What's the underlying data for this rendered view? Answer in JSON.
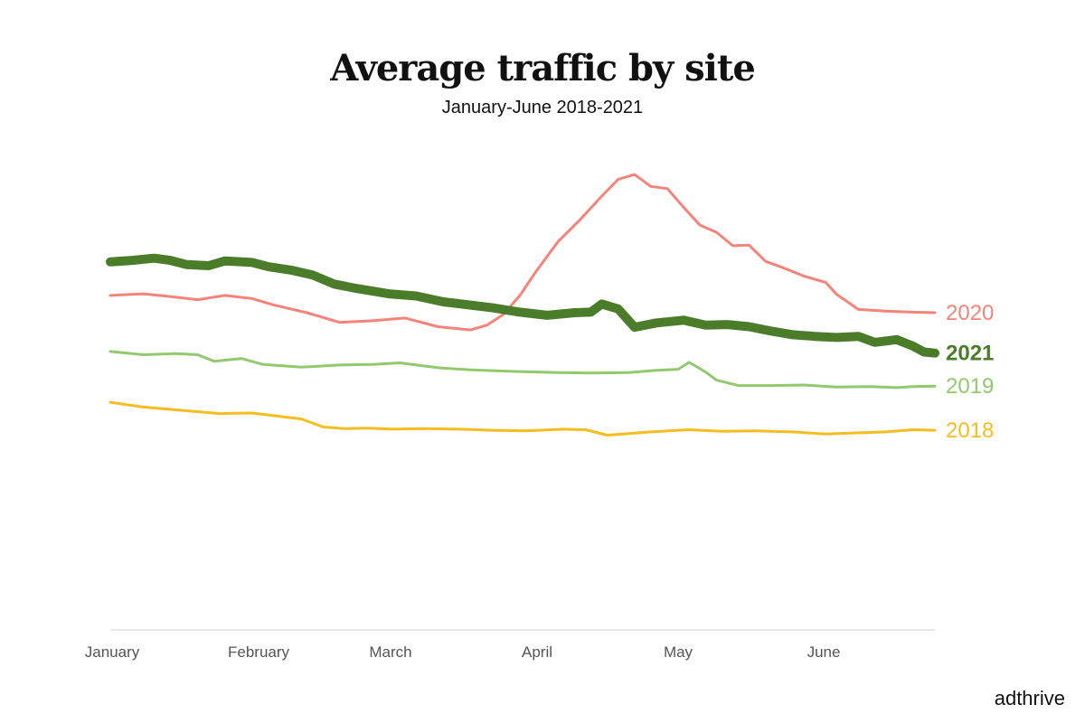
{
  "chart_data": {
    "type": "line",
    "title": "Average traffic by site",
    "subtitle": "January-June 2018-2021",
    "xlabel": "",
    "ylabel": "",
    "x_ticks": [
      "January",
      "February",
      "March",
      "April",
      "May",
      "June"
    ],
    "ylim": [
      0,
      100
    ],
    "grid": false,
    "legend": "end-of-line labels",
    "series": [
      {
        "name": "2020",
        "color": "#f4847a",
        "weight": "normal",
        "values": [
          [
            0,
            62
          ],
          [
            6,
            62.3
          ],
          [
            11,
            61.8
          ],
          [
            16,
            61.2
          ],
          [
            21,
            62
          ],
          [
            26,
            61.4
          ],
          [
            30,
            60.2
          ],
          [
            36,
            58.8
          ],
          [
            42,
            57
          ],
          [
            48,
            57.3
          ],
          [
            54,
            57.8
          ],
          [
            60,
            56.2
          ],
          [
            66,
            55.6
          ],
          [
            69,
            56.5
          ],
          [
            72,
            58.5
          ],
          [
            75,
            62
          ],
          [
            78,
            66.5
          ],
          [
            82,
            72
          ],
          [
            86,
            76
          ],
          [
            90,
            80.4
          ],
          [
            93,
            83.5
          ],
          [
            96,
            84.4
          ],
          [
            99,
            82.2
          ],
          [
            102,
            81.8
          ],
          [
            105,
            78.3
          ],
          [
            108,
            75
          ],
          [
            111,
            73.7
          ],
          [
            114,
            71.2
          ],
          [
            117,
            71.3
          ],
          [
            120,
            68.3
          ],
          [
            123,
            67.2
          ],
          [
            127,
            65.6
          ],
          [
            131,
            64.4
          ],
          [
            133,
            62.2
          ],
          [
            137,
            59.4
          ],
          [
            142,
            59.1
          ],
          [
            147,
            58.9
          ],
          [
            151,
            58.8
          ]
        ]
      },
      {
        "name": "2021",
        "color": "#4a7c2a",
        "weight": "bold",
        "values": [
          [
            0,
            68.2
          ],
          [
            4,
            68.5
          ],
          [
            8,
            68.9
          ],
          [
            11,
            68.5
          ],
          [
            14,
            67.7
          ],
          [
            18,
            67.5
          ],
          [
            21,
            68.4
          ],
          [
            26,
            68.1
          ],
          [
            29,
            67.3
          ],
          [
            33,
            66.7
          ],
          [
            37,
            65.8
          ],
          [
            41,
            64.1
          ],
          [
            45,
            63.3
          ],
          [
            51,
            62.3
          ],
          [
            56,
            61.9
          ],
          [
            61,
            60.8
          ],
          [
            66,
            60.2
          ],
          [
            70,
            59.7
          ],
          [
            75,
            58.9
          ],
          [
            80,
            58.3
          ],
          [
            85,
            58.8
          ],
          [
            88,
            58.9
          ],
          [
            90,
            60.4
          ],
          [
            93,
            59.5
          ],
          [
            96,
            56.1
          ],
          [
            100,
            56.9
          ],
          [
            105,
            57.4
          ],
          [
            109,
            56.5
          ],
          [
            113,
            56.6
          ],
          [
            117,
            56.2
          ],
          [
            121,
            55.4
          ],
          [
            125,
            54.7
          ],
          [
            129,
            54.4
          ],
          [
            133,
            54.2
          ],
          [
            137,
            54.4
          ],
          [
            140,
            53.3
          ],
          [
            144,
            53.8
          ],
          [
            147,
            52.6
          ],
          [
            149,
            51.5
          ],
          [
            151,
            51.3
          ]
        ]
      },
      {
        "name": "2019",
        "color": "#93c96e",
        "weight": "normal",
        "values": [
          [
            0,
            51.6
          ],
          [
            6,
            51
          ],
          [
            12,
            51.2
          ],
          [
            16,
            51
          ],
          [
            19,
            49.8
          ],
          [
            24,
            50.3
          ],
          [
            28,
            49.2
          ],
          [
            35,
            48.7
          ],
          [
            42,
            49.1
          ],
          [
            48,
            49.2
          ],
          [
            53,
            49.5
          ],
          [
            60,
            48.6
          ],
          [
            66,
            48.2
          ],
          [
            74,
            47.9
          ],
          [
            82,
            47.7
          ],
          [
            88,
            47.6
          ],
          [
            95,
            47.7
          ],
          [
            100,
            48.1
          ],
          [
            104,
            48.3
          ],
          [
            106,
            49.6
          ],
          [
            109,
            47.8
          ],
          [
            111,
            46.3
          ],
          [
            115,
            45.3
          ],
          [
            121,
            45.3
          ],
          [
            127,
            45.4
          ],
          [
            133,
            45
          ],
          [
            139,
            45.1
          ],
          [
            144,
            44.9
          ],
          [
            147,
            45.1
          ],
          [
            151,
            45.2
          ]
        ]
      },
      {
        "name": "2018",
        "color": "#f5bd1f",
        "weight": "normal",
        "values": [
          [
            0,
            42.2
          ],
          [
            6,
            41.3
          ],
          [
            13,
            40.7
          ],
          [
            20,
            40.1
          ],
          [
            26,
            40.2
          ],
          [
            30,
            39.7
          ],
          [
            35,
            39.1
          ],
          [
            39,
            37.6
          ],
          [
            43,
            37.3
          ],
          [
            47,
            37.4
          ],
          [
            52,
            37.2
          ],
          [
            57,
            37.3
          ],
          [
            64,
            37.2
          ],
          [
            70,
            37
          ],
          [
            76,
            36.9
          ],
          [
            83,
            37.2
          ],
          [
            87,
            37.1
          ],
          [
            91,
            36.1
          ],
          [
            95,
            36.4
          ],
          [
            99,
            36.7
          ],
          [
            106,
            37.1
          ],
          [
            112,
            36.8
          ],
          [
            118,
            36.9
          ],
          [
            125,
            36.7
          ],
          [
            131,
            36.3
          ],
          [
            136,
            36.5
          ],
          [
            142,
            36.7
          ],
          [
            147,
            37.1
          ],
          [
            151,
            37
          ]
        ]
      }
    ],
    "x_range": [
      0,
      151
    ]
  },
  "branding": {
    "logo_text": "adthrive"
  }
}
